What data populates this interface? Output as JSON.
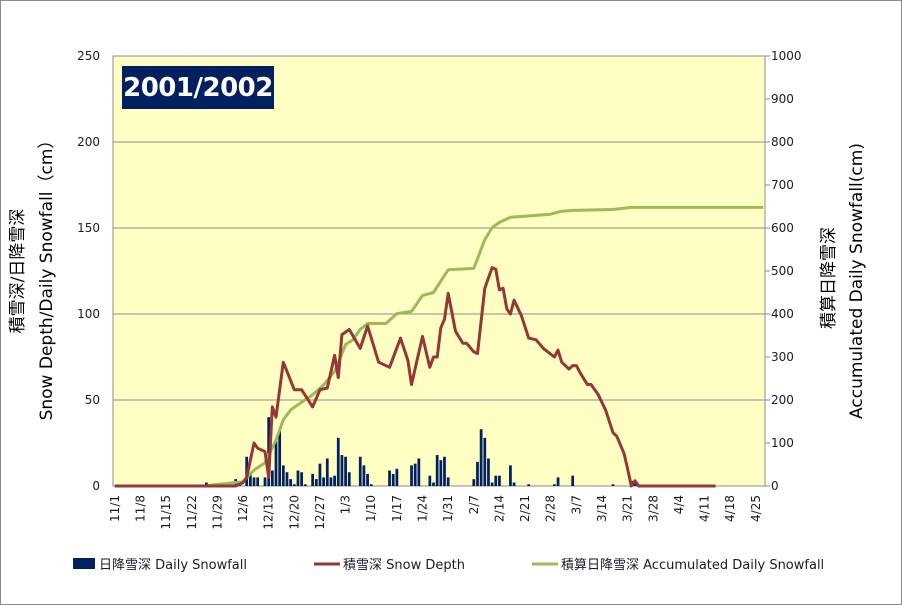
{
  "chart_data": {
    "type": "bar+line",
    "title": "2001/2002",
    "y_left_label_line1": "積雪深/日降雪深",
    "y_left_label_line2": "Snow Depth/Daily Snowfall（cm）",
    "y_right_label_line1": "積算日降雪深",
    "y_right_label_line2": "Accumulated Daily Snowfall(cm)",
    "y_left_range": [
      0,
      250
    ],
    "y_left_ticks": [
      "0",
      "50",
      "100",
      "150",
      "200",
      "250"
    ],
    "y_right_range": [
      0,
      1000
    ],
    "y_right_ticks": [
      "0",
      "100",
      "200",
      "300",
      "400",
      "500",
      "600",
      "700",
      "800",
      "900",
      "1000"
    ],
    "x_range": [
      "11/1",
      "4/27"
    ],
    "x_ticks": [
      "11/1",
      "11/8",
      "11/15",
      "11/22",
      "11/29",
      "12/6",
      "12/13",
      "12/20",
      "12/27",
      "1/3",
      "1/10",
      "1/17",
      "1/24",
      "1/31",
      "2/7",
      "2/14",
      "2/21",
      "2/28",
      "3/7",
      "3/14",
      "3/21",
      "3/28",
      "4/4",
      "4/11",
      "4/18",
      "4/25"
    ],
    "grid": "horizontal",
    "legend_placement": "bottom",
    "colors": {
      "plot_bg": "#FFFFC4",
      "snowfall": "#002060",
      "depth": "#953735",
      "accumulated": "#9BBB59",
      "grid": "#8c8c8c"
    },
    "series": [
      {
        "name": "日降雪深 Daily Snowfall",
        "type": "bar",
        "axis": "left",
        "points": [
          [
            "11/26",
            2
          ],
          [
            "12/4",
            4
          ],
          [
            "12/5",
            1
          ],
          [
            "12/7",
            17
          ],
          [
            "12/8",
            7
          ],
          [
            "12/9",
            5
          ],
          [
            "12/10",
            5
          ],
          [
            "12/12",
            5
          ],
          [
            "12/13",
            40
          ],
          [
            "12/14",
            9
          ],
          [
            "12/15",
            26
          ],
          [
            "12/16",
            32
          ],
          [
            "12/17",
            12
          ],
          [
            "12/18",
            8
          ],
          [
            "12/19",
            4
          ],
          [
            "12/20",
            1
          ],
          [
            "12/21",
            9
          ],
          [
            "12/22",
            8
          ],
          [
            "12/23",
            1
          ],
          [
            "12/25",
            7
          ],
          [
            "12/26",
            4
          ],
          [
            "12/27",
            13
          ],
          [
            "12/28",
            5
          ],
          [
            "12/29",
            16
          ],
          [
            "12/30",
            5
          ],
          [
            "12/31",
            6
          ],
          [
            "1/1",
            28
          ],
          [
            "1/2",
            18
          ],
          [
            "1/3",
            17
          ],
          [
            "1/4",
            8
          ],
          [
            "1/7",
            17
          ],
          [
            "1/8",
            12
          ],
          [
            "1/9",
            7
          ],
          [
            "1/10",
            1
          ],
          [
            "1/15",
            9
          ],
          [
            "1/16",
            7
          ],
          [
            "1/17",
            10
          ],
          [
            "1/21",
            12
          ],
          [
            "1/22",
            13
          ],
          [
            "1/23",
            16
          ],
          [
            "1/26",
            6
          ],
          [
            "1/27",
            2
          ],
          [
            "1/28",
            18
          ],
          [
            "1/29",
            15
          ],
          [
            "1/30",
            17
          ],
          [
            "1/31",
            5
          ],
          [
            "2/7",
            4
          ],
          [
            "2/8",
            14
          ],
          [
            "2/9",
            33
          ],
          [
            "2/10",
            28
          ],
          [
            "2/11",
            16
          ],
          [
            "2/12",
            2
          ],
          [
            "2/13",
            6
          ],
          [
            "2/14",
            6
          ],
          [
            "2/17",
            12
          ],
          [
            "2/18",
            2
          ],
          [
            "2/22",
            1
          ],
          [
            "3/1",
            1
          ],
          [
            "3/2",
            5
          ],
          [
            "3/6",
            6
          ],
          [
            "3/17",
            1
          ],
          [
            "3/22",
            3
          ],
          [
            "3/23",
            3
          ]
        ]
      },
      {
        "name": "積雪深 Snow Depth",
        "type": "line",
        "axis": "left",
        "points": [
          [
            "11/1",
            0
          ],
          [
            "12/4",
            0
          ],
          [
            "12/6",
            2
          ],
          [
            "12/7",
            5
          ],
          [
            "12/9",
            25
          ],
          [
            "12/10",
            22
          ],
          [
            "12/12",
            20
          ],
          [
            "12/13",
            5
          ],
          [
            "12/14",
            46
          ],
          [
            "12/15",
            40
          ],
          [
            "12/17",
            72
          ],
          [
            "12/20",
            56
          ],
          [
            "12/22",
            56
          ],
          [
            "12/25",
            46
          ],
          [
            "12/27",
            56
          ],
          [
            "12/29",
            57
          ],
          [
            "12/31",
            76
          ],
          [
            "1/1",
            63
          ],
          [
            "1/2",
            88
          ],
          [
            "1/4",
            91
          ],
          [
            "1/7",
            80
          ],
          [
            "1/9",
            93
          ],
          [
            "1/12",
            72
          ],
          [
            "1/15",
            69
          ],
          [
            "1/18",
            86
          ],
          [
            "1/20",
            73
          ],
          [
            "1/21",
            59
          ],
          [
            "1/24",
            87
          ],
          [
            "1/26",
            69
          ],
          [
            "1/27",
            75
          ],
          [
            "1/28",
            75
          ],
          [
            "1/29",
            92
          ],
          [
            "1/30",
            97
          ],
          [
            "1/31",
            112
          ],
          [
            "2/2",
            90
          ],
          [
            "2/4",
            83
          ],
          [
            "2/5",
            83
          ],
          [
            "2/7",
            78
          ],
          [
            "2/8",
            77
          ],
          [
            "2/10",
            115
          ],
          [
            "2/12",
            127
          ],
          [
            "2/13",
            126
          ],
          [
            "2/14",
            114
          ],
          [
            "2/15",
            115
          ],
          [
            "2/16",
            103
          ],
          [
            "2/17",
            100
          ],
          [
            "2/18",
            108
          ],
          [
            "2/20",
            99
          ],
          [
            "2/22",
            86
          ],
          [
            "2/24",
            85
          ],
          [
            "2/26",
            80
          ],
          [
            "3/1",
            75
          ],
          [
            "3/2",
            79
          ],
          [
            "3/3",
            72
          ],
          [
            "3/5",
            68
          ],
          [
            "3/6",
            70
          ],
          [
            "3/7",
            70
          ],
          [
            "3/8",
            66
          ],
          [
            "3/10",
            59
          ],
          [
            "3/11",
            59
          ],
          [
            "3/13",
            53
          ],
          [
            "3/15",
            44
          ],
          [
            "3/17",
            31
          ],
          [
            "3/18",
            29
          ],
          [
            "3/20",
            19
          ],
          [
            "3/21",
            10
          ],
          [
            "3/22",
            0
          ],
          [
            "3/23",
            3
          ],
          [
            "3/24",
            0
          ],
          [
            "4/14",
            0
          ]
        ]
      },
      {
        "name": "積算日降雪深 Accumulated Daily Snowfall",
        "type": "line",
        "axis": "right",
        "points": [
          [
            "11/1",
            0
          ],
          [
            "11/26",
            0
          ],
          [
            "11/28",
            3
          ],
          [
            "12/6",
            10
          ],
          [
            "12/9",
            37
          ],
          [
            "12/12",
            54
          ],
          [
            "12/13",
            72
          ],
          [
            "12/15",
            107
          ],
          [
            "12/17",
            154
          ],
          [
            "12/19",
            177
          ],
          [
            "12/21",
            189
          ],
          [
            "12/25",
            212
          ],
          [
            "12/28",
            235
          ],
          [
            "12/31",
            266
          ],
          [
            "1/3",
            329
          ],
          [
            "1/5",
            340
          ],
          [
            "1/7",
            364
          ],
          [
            "1/9",
            378
          ],
          [
            "1/14",
            378
          ],
          [
            "1/17",
            401
          ],
          [
            "1/21",
            406
          ],
          [
            "1/24",
            443
          ],
          [
            "1/27",
            450
          ],
          [
            "1/31",
            503
          ],
          [
            "2/7",
            506
          ],
          [
            "2/10",
            573
          ],
          [
            "2/12",
            601
          ],
          [
            "2/14",
            613
          ],
          [
            "2/17",
            625
          ],
          [
            "2/28",
            632
          ],
          [
            "3/3",
            639
          ],
          [
            "3/6",
            641
          ],
          [
            "3/17",
            643
          ],
          [
            "3/22",
            648
          ],
          [
            "4/27",
            648
          ]
        ]
      }
    ]
  }
}
